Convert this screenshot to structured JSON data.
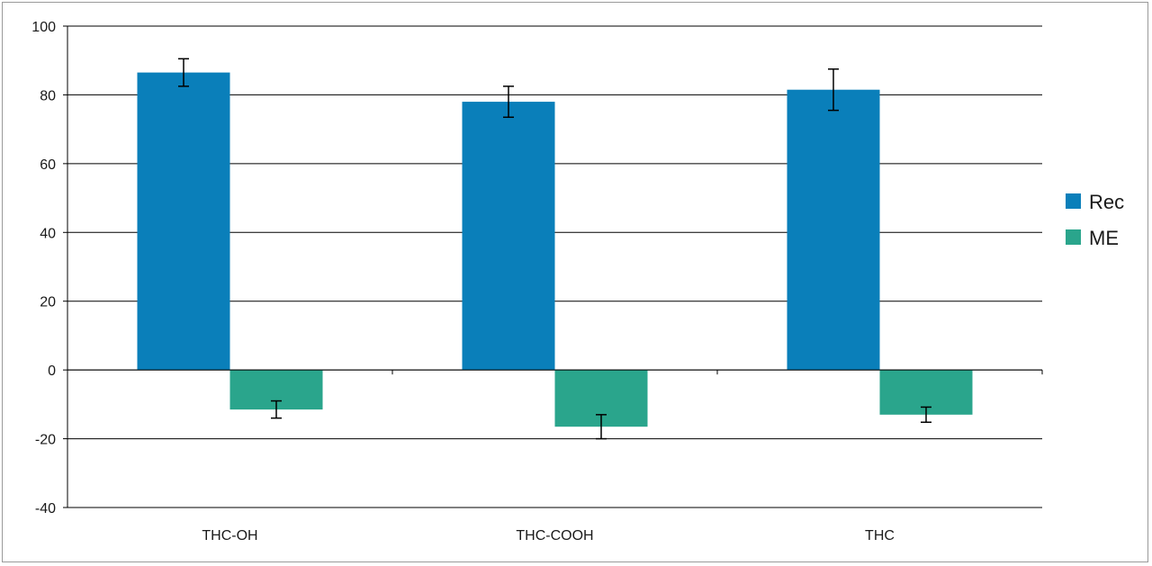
{
  "chart_data": {
    "type": "bar",
    "categories": [
      "THC-OH",
      "THC-COOH",
      "THC"
    ],
    "series": [
      {
        "name": "Rec",
        "color": "#0a7fba",
        "values": [
          86.5,
          78,
          81.5
        ],
        "errors": [
          4,
          4.5,
          6
        ]
      },
      {
        "name": "ME",
        "color": "#2aa58c",
        "values": [
          -11.5,
          -16.5,
          -13
        ],
        "errors": [
          2.5,
          3.5,
          2.2
        ]
      }
    ],
    "title": "",
    "xlabel": "",
    "ylabel": "",
    "ylim": [
      -40,
      100
    ],
    "yticks": [
      100,
      80,
      60,
      40,
      20,
      0,
      -20,
      -40
    ],
    "grid": true,
    "legend": "right"
  }
}
